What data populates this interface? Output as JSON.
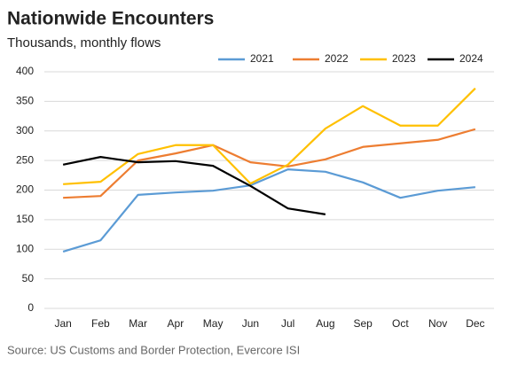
{
  "chart_data": {
    "type": "line",
    "title": "Nationwide Encounters",
    "subtitle": "Thousands, monthly flows",
    "source": "Source: US Customs and Border Protection, Evercore ISI",
    "categories": [
      "Jan",
      "Feb",
      "Mar",
      "Apr",
      "May",
      "Jun",
      "Jul",
      "Aug",
      "Sep",
      "Oct",
      "Nov",
      "Dec"
    ],
    "series": [
      {
        "name": "2021",
        "color": "#5b9bd5",
        "values": [
          96,
          115,
          192,
          196,
          199,
          208,
          235,
          231,
          213,
          187,
          199,
          205
        ]
      },
      {
        "name": "2022",
        "color": "#ed7d31",
        "values": [
          187,
          190,
          250,
          262,
          276,
          247,
          240,
          252,
          273,
          279,
          285,
          303
        ]
      },
      {
        "name": "2023",
        "color": "#ffc000",
        "values": [
          210,
          214,
          261,
          276,
          276,
          211,
          243,
          304,
          342,
          309,
          309,
          372
        ]
      },
      {
        "name": "2024",
        "color": "#000000",
        "values": [
          243,
          256,
          247,
          249,
          241,
          207,
          169,
          159,
          null,
          null,
          null,
          null
        ]
      }
    ],
    "ylim": [
      0,
      400
    ],
    "yticks": [
      0,
      50,
      100,
      150,
      200,
      250,
      300,
      350,
      400
    ],
    "grid": true,
    "legend": "top"
  }
}
